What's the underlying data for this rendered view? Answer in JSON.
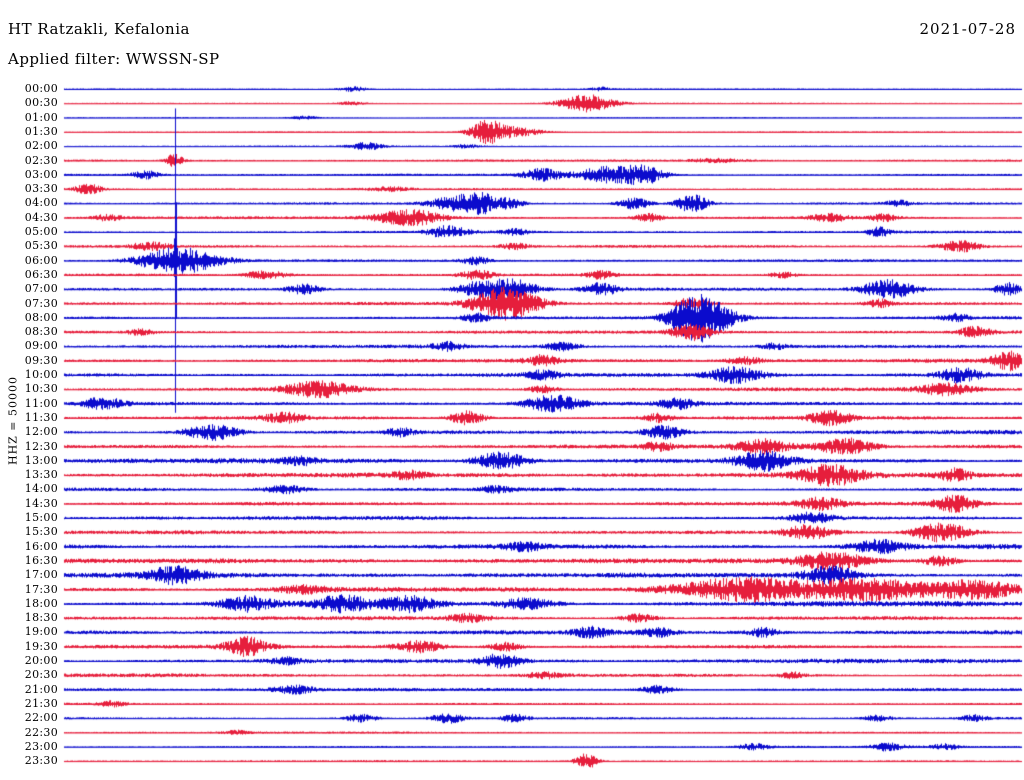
{
  "header": {
    "station": "HT Ratzakli, Kefalonia",
    "date": "2021-07-28",
    "filter_label": "Applied filter: WWSSN-SP"
  },
  "axis": {
    "scale_label": "HHZ = 50000"
  },
  "chart_data": {
    "type": "line",
    "subtype": "seismogram-helicorder",
    "title": "HT Ratzakli, Kefalonia",
    "date": "2021-07-28",
    "filter": "WWSSN-SP",
    "channel_scale": "HHZ = 50000",
    "trace_duration_minutes": 30,
    "legend_position": "none",
    "grid": false,
    "colors": {
      "trace_a": "#0b0bcd",
      "trace_b": "#e61e3c",
      "text": "#000000",
      "background": "#ffffff"
    },
    "rows": [
      {
        "label": "00:00",
        "c": "a",
        "base": 0.7,
        "events": [
          {
            "x": 0.3,
            "a": 3,
            "w": 0.01
          },
          {
            "x": 0.56,
            "a": 2,
            "w": 0.008
          }
        ]
      },
      {
        "label": "00:30",
        "c": "b",
        "base": 0.7,
        "events": [
          {
            "x": 0.545,
            "a": 9,
            "w": 0.02
          },
          {
            "x": 0.3,
            "a": 2,
            "w": 0.01
          }
        ]
      },
      {
        "label": "01:00",
        "c": "a",
        "base": 0.6,
        "events": [
          {
            "x": 0.25,
            "a": 2,
            "w": 0.01
          }
        ]
      },
      {
        "label": "01:30",
        "c": "b",
        "base": 0.7,
        "events": [
          {
            "x": 0.44,
            "a": 11,
            "w": 0.012
          },
          {
            "x": 0.47,
            "a": 5,
            "w": 0.02
          }
        ]
      },
      {
        "label": "02:00",
        "c": "a",
        "base": 0.8,
        "events": [
          {
            "x": 0.315,
            "a": 4,
            "w": 0.012
          },
          {
            "x": 0.42,
            "a": 2,
            "w": 0.01
          }
        ]
      },
      {
        "label": "02:30",
        "c": "b",
        "base": 1.0,
        "events": [
          {
            "x": 0.115,
            "a": 7,
            "w": 0.006
          },
          {
            "x": 0.68,
            "a": 2,
            "w": 0.02
          }
        ]
      },
      {
        "label": "03:00",
        "c": "a",
        "base": 1.2,
        "events": [
          {
            "x": 0.085,
            "a": 4,
            "w": 0.01
          },
          {
            "x": 0.5,
            "a": 6,
            "w": 0.015
          },
          {
            "x": 0.565,
            "a": 8,
            "w": 0.02
          },
          {
            "x": 0.605,
            "a": 9,
            "w": 0.015
          }
        ]
      },
      {
        "label": "03:30",
        "c": "b",
        "base": 1.0,
        "events": [
          {
            "x": 0.025,
            "a": 5,
            "w": 0.01
          },
          {
            "x": 0.34,
            "a": 2,
            "w": 0.015
          }
        ]
      },
      {
        "label": "04:00",
        "c": "a",
        "base": 1.3,
        "events": [
          {
            "x": 0.41,
            "a": 7,
            "w": 0.02
          },
          {
            "x": 0.435,
            "a": 8,
            "w": 0.012
          },
          {
            "x": 0.465,
            "a": 5,
            "w": 0.01
          },
          {
            "x": 0.595,
            "a": 6,
            "w": 0.012
          },
          {
            "x": 0.655,
            "a": 9,
            "w": 0.012
          },
          {
            "x": 0.87,
            "a": 3,
            "w": 0.01
          }
        ]
      },
      {
        "label": "04:30",
        "c": "b",
        "base": 1.3,
        "events": [
          {
            "x": 0.045,
            "a": 3,
            "w": 0.01
          },
          {
            "x": 0.36,
            "a": 8,
            "w": 0.025
          },
          {
            "x": 0.61,
            "a": 4,
            "w": 0.01
          },
          {
            "x": 0.8,
            "a": 4,
            "w": 0.015
          },
          {
            "x": 0.855,
            "a": 4,
            "w": 0.01
          }
        ]
      },
      {
        "label": "05:00",
        "c": "a",
        "base": 1.2,
        "events": [
          {
            "x": 0.4,
            "a": 6,
            "w": 0.015
          },
          {
            "x": 0.47,
            "a": 3,
            "w": 0.01
          },
          {
            "x": 0.85,
            "a": 5,
            "w": 0.008
          }
        ]
      },
      {
        "label": "05:30",
        "c": "b",
        "base": 1.2,
        "events": [
          {
            "x": 0.09,
            "a": 4,
            "w": 0.015
          },
          {
            "x": 0.47,
            "a": 3,
            "w": 0.01
          },
          {
            "x": 0.935,
            "a": 6,
            "w": 0.015
          }
        ]
      },
      {
        "label": "06:00",
        "c": "a",
        "base": 1.2,
        "events": [
          {
            "x": 0.116,
            "a": 150,
            "w": 0.0006
          },
          {
            "x": 0.12,
            "a": 13,
            "w": 0.03
          },
          {
            "x": 0.43,
            "a": 4,
            "w": 0.01
          }
        ]
      },
      {
        "label": "06:30",
        "c": "b",
        "base": 1.2,
        "events": [
          {
            "x": 0.21,
            "a": 4,
            "w": 0.015
          },
          {
            "x": 0.43,
            "a": 5,
            "w": 0.012
          },
          {
            "x": 0.56,
            "a": 4,
            "w": 0.01
          },
          {
            "x": 0.75,
            "a": 3,
            "w": 0.01
          }
        ]
      },
      {
        "label": "07:00",
        "c": "a",
        "base": 1.5,
        "events": [
          {
            "x": 0.25,
            "a": 5,
            "w": 0.012
          },
          {
            "x": 0.44,
            "a": 9,
            "w": 0.02
          },
          {
            "x": 0.475,
            "a": 7,
            "w": 0.015
          },
          {
            "x": 0.56,
            "a": 6,
            "w": 0.012
          },
          {
            "x": 0.86,
            "a": 9,
            "w": 0.02
          },
          {
            "x": 0.985,
            "a": 6,
            "w": 0.01
          }
        ]
      },
      {
        "label": "07:30",
        "c": "b",
        "base": 1.5,
        "events": [
          {
            "x": 0.45,
            "a": 11,
            "w": 0.02
          },
          {
            "x": 0.475,
            "a": 8,
            "w": 0.02
          },
          {
            "x": 0.655,
            "a": 6,
            "w": 0.012
          },
          {
            "x": 0.85,
            "a": 4,
            "w": 0.01
          }
        ]
      },
      {
        "label": "08:00",
        "c": "a",
        "base": 1.5,
        "events": [
          {
            "x": 0.43,
            "a": 4,
            "w": 0.01
          },
          {
            "x": 0.655,
            "a": 16,
            "w": 0.018
          },
          {
            "x": 0.675,
            "a": 12,
            "w": 0.02
          },
          {
            "x": 0.93,
            "a": 4,
            "w": 0.01
          }
        ]
      },
      {
        "label": "08:30",
        "c": "b",
        "base": 1.5,
        "events": [
          {
            "x": 0.08,
            "a": 3,
            "w": 0.01
          },
          {
            "x": 0.655,
            "a": 8,
            "w": 0.015
          },
          {
            "x": 0.95,
            "a": 5,
            "w": 0.012
          }
        ]
      },
      {
        "label": "09:00",
        "c": "a",
        "base": 1.5,
        "events": [
          {
            "x": 0.4,
            "a": 4,
            "w": 0.012
          },
          {
            "x": 0.52,
            "a": 4,
            "w": 0.012
          },
          {
            "x": 0.74,
            "a": 3,
            "w": 0.01
          }
        ]
      },
      {
        "label": "09:30",
        "c": "b",
        "base": 1.8,
        "events": [
          {
            "x": 0.5,
            "a": 5,
            "w": 0.012
          },
          {
            "x": 0.71,
            "a": 4,
            "w": 0.012
          },
          {
            "x": 0.985,
            "a": 9,
            "w": 0.012
          }
        ]
      },
      {
        "label": "10:00",
        "c": "a",
        "base": 1.8,
        "events": [
          {
            "x": 0.5,
            "a": 4,
            "w": 0.012
          },
          {
            "x": 0.7,
            "a": 8,
            "w": 0.02
          },
          {
            "x": 0.935,
            "a": 7,
            "w": 0.015
          }
        ]
      },
      {
        "label": "10:30",
        "c": "b",
        "base": 1.8,
        "events": [
          {
            "x": 0.265,
            "a": 8,
            "w": 0.025
          },
          {
            "x": 0.5,
            "a": 4,
            "w": 0.01
          },
          {
            "x": 0.92,
            "a": 6,
            "w": 0.02
          }
        ]
      },
      {
        "label": "11:00",
        "c": "a",
        "base": 1.8,
        "events": [
          {
            "x": 0.04,
            "a": 6,
            "w": 0.015
          },
          {
            "x": 0.51,
            "a": 8,
            "w": 0.02
          },
          {
            "x": 0.64,
            "a": 5,
            "w": 0.012
          }
        ]
      },
      {
        "label": "11:30",
        "c": "b",
        "base": 2.0,
        "events": [
          {
            "x": 0.23,
            "a": 5,
            "w": 0.015
          },
          {
            "x": 0.42,
            "a": 7,
            "w": 0.012
          },
          {
            "x": 0.62,
            "a": 4,
            "w": 0.01
          },
          {
            "x": 0.8,
            "a": 7,
            "w": 0.015
          }
        ]
      },
      {
        "label": "12:00",
        "c": "a",
        "base": 2.0,
        "events": [
          {
            "x": 0.155,
            "a": 8,
            "w": 0.02
          },
          {
            "x": 0.35,
            "a": 4,
            "w": 0.01
          },
          {
            "x": 0.625,
            "a": 7,
            "w": 0.015
          }
        ]
      },
      {
        "label": "12:30",
        "c": "b",
        "base": 2.0,
        "events": [
          {
            "x": 0.62,
            "a": 4,
            "w": 0.012
          },
          {
            "x": 0.73,
            "a": 7,
            "w": 0.02
          },
          {
            "x": 0.815,
            "a": 8,
            "w": 0.02
          }
        ]
      },
      {
        "label": "13:00",
        "c": "a",
        "base": 2.2,
        "events": [
          {
            "x": 0.245,
            "a": 4,
            "w": 0.012
          },
          {
            "x": 0.455,
            "a": 8,
            "w": 0.018
          },
          {
            "x": 0.73,
            "a": 9,
            "w": 0.02
          }
        ]
      },
      {
        "label": "13:30",
        "c": "b",
        "base": 2.2,
        "events": [
          {
            "x": 0.36,
            "a": 4,
            "w": 0.012
          },
          {
            "x": 0.8,
            "a": 10,
            "w": 0.022
          },
          {
            "x": 0.93,
            "a": 6,
            "w": 0.012
          }
        ]
      },
      {
        "label": "14:00",
        "c": "a",
        "base": 2.0,
        "events": [
          {
            "x": 0.23,
            "a": 4,
            "w": 0.015
          },
          {
            "x": 0.45,
            "a": 3,
            "w": 0.012
          }
        ]
      },
      {
        "label": "14:30",
        "c": "b",
        "base": 2.0,
        "events": [
          {
            "x": 0.79,
            "a": 6,
            "w": 0.015
          },
          {
            "x": 0.93,
            "a": 8,
            "w": 0.015
          }
        ]
      },
      {
        "label": "15:00",
        "c": "a",
        "base": 2.0,
        "events": [
          {
            "x": 0.78,
            "a": 5,
            "w": 0.015
          }
        ]
      },
      {
        "label": "15:30",
        "c": "b",
        "base": 2.0,
        "events": [
          {
            "x": 0.775,
            "a": 7,
            "w": 0.018
          },
          {
            "x": 0.915,
            "a": 10,
            "w": 0.02
          }
        ]
      },
      {
        "label": "16:00",
        "c": "a",
        "base": 2.5,
        "events": [
          {
            "x": 0.48,
            "a": 4,
            "w": 0.015
          },
          {
            "x": 0.85,
            "a": 6,
            "w": 0.02
          }
        ]
      },
      {
        "label": "16:30",
        "c": "b",
        "base": 2.2,
        "events": [
          {
            "x": 0.8,
            "a": 9,
            "w": 0.025
          },
          {
            "x": 0.915,
            "a": 5,
            "w": 0.012
          }
        ]
      },
      {
        "label": "17:00",
        "c": "a",
        "base": 2.2,
        "events": [
          {
            "x": 0.115,
            "a": 8,
            "w": 0.02
          },
          {
            "x": 0.8,
            "a": 9,
            "w": 0.02
          }
        ]
      },
      {
        "label": "17:30",
        "c": "b",
        "base": 2.8,
        "events": [
          {
            "x": 0.25,
            "a": 4,
            "w": 0.02
          },
          {
            "x": 0.71,
            "a": 12,
            "w": 0.05
          },
          {
            "x": 0.84,
            "a": 10,
            "w": 0.04
          },
          {
            "x": 0.95,
            "a": 8,
            "w": 0.03
          }
        ]
      },
      {
        "label": "18:00",
        "c": "a",
        "base": 2.8,
        "events": [
          {
            "x": 0.19,
            "a": 7,
            "w": 0.02
          },
          {
            "x": 0.29,
            "a": 8,
            "w": 0.02
          },
          {
            "x": 0.36,
            "a": 7,
            "w": 0.02
          },
          {
            "x": 0.48,
            "a": 5,
            "w": 0.02
          }
        ]
      },
      {
        "label": "18:30",
        "c": "b",
        "base": 2.2,
        "events": [
          {
            "x": 0.42,
            "a": 4,
            "w": 0.015
          },
          {
            "x": 0.6,
            "a": 4,
            "w": 0.012
          }
        ]
      },
      {
        "label": "19:00",
        "c": "a",
        "base": 2.0,
        "events": [
          {
            "x": 0.55,
            "a": 5,
            "w": 0.012
          },
          {
            "x": 0.62,
            "a": 4,
            "w": 0.012
          },
          {
            "x": 0.73,
            "a": 4,
            "w": 0.01
          }
        ]
      },
      {
        "label": "19:30",
        "c": "b",
        "base": 2.0,
        "events": [
          {
            "x": 0.19,
            "a": 9,
            "w": 0.015
          },
          {
            "x": 0.37,
            "a": 6,
            "w": 0.018
          },
          {
            "x": 0.46,
            "a": 4,
            "w": 0.012
          }
        ]
      },
      {
        "label": "20:00",
        "c": "a",
        "base": 2.0,
        "events": [
          {
            "x": 0.23,
            "a": 3,
            "w": 0.012
          },
          {
            "x": 0.455,
            "a": 7,
            "w": 0.015
          }
        ]
      },
      {
        "label": "20:30",
        "c": "b",
        "base": 1.8,
        "events": [
          {
            "x": 0.5,
            "a": 3,
            "w": 0.012
          },
          {
            "x": 0.76,
            "a": 3,
            "w": 0.01
          }
        ]
      },
      {
        "label": "21:00",
        "c": "a",
        "base": 1.8,
        "events": [
          {
            "x": 0.24,
            "a": 4,
            "w": 0.015
          },
          {
            "x": 0.62,
            "a": 4,
            "w": 0.012
          }
        ]
      },
      {
        "label": "21:30",
        "c": "b",
        "base": 1.2,
        "events": [
          {
            "x": 0.05,
            "a": 3,
            "w": 0.01
          }
        ]
      },
      {
        "label": "22:00",
        "c": "a",
        "base": 1.2,
        "events": [
          {
            "x": 0.31,
            "a": 4,
            "w": 0.012
          },
          {
            "x": 0.4,
            "a": 5,
            "w": 0.012
          },
          {
            "x": 0.47,
            "a": 4,
            "w": 0.01
          },
          {
            "x": 0.85,
            "a": 3,
            "w": 0.01
          },
          {
            "x": 0.95,
            "a": 3,
            "w": 0.01
          }
        ]
      },
      {
        "label": "22:30",
        "c": "b",
        "base": 1.0,
        "events": [
          {
            "x": 0.18,
            "a": 2,
            "w": 0.01
          }
        ]
      },
      {
        "label": "23:00",
        "c": "a",
        "base": 1.0,
        "events": [
          {
            "x": 0.72,
            "a": 3,
            "w": 0.012
          },
          {
            "x": 0.86,
            "a": 4,
            "w": 0.012
          },
          {
            "x": 0.92,
            "a": 3,
            "w": 0.01
          }
        ]
      },
      {
        "label": "23:30",
        "c": "b",
        "base": 0.9,
        "events": [
          {
            "x": 0.545,
            "a": 8,
            "w": 0.008
          }
        ]
      }
    ]
  }
}
